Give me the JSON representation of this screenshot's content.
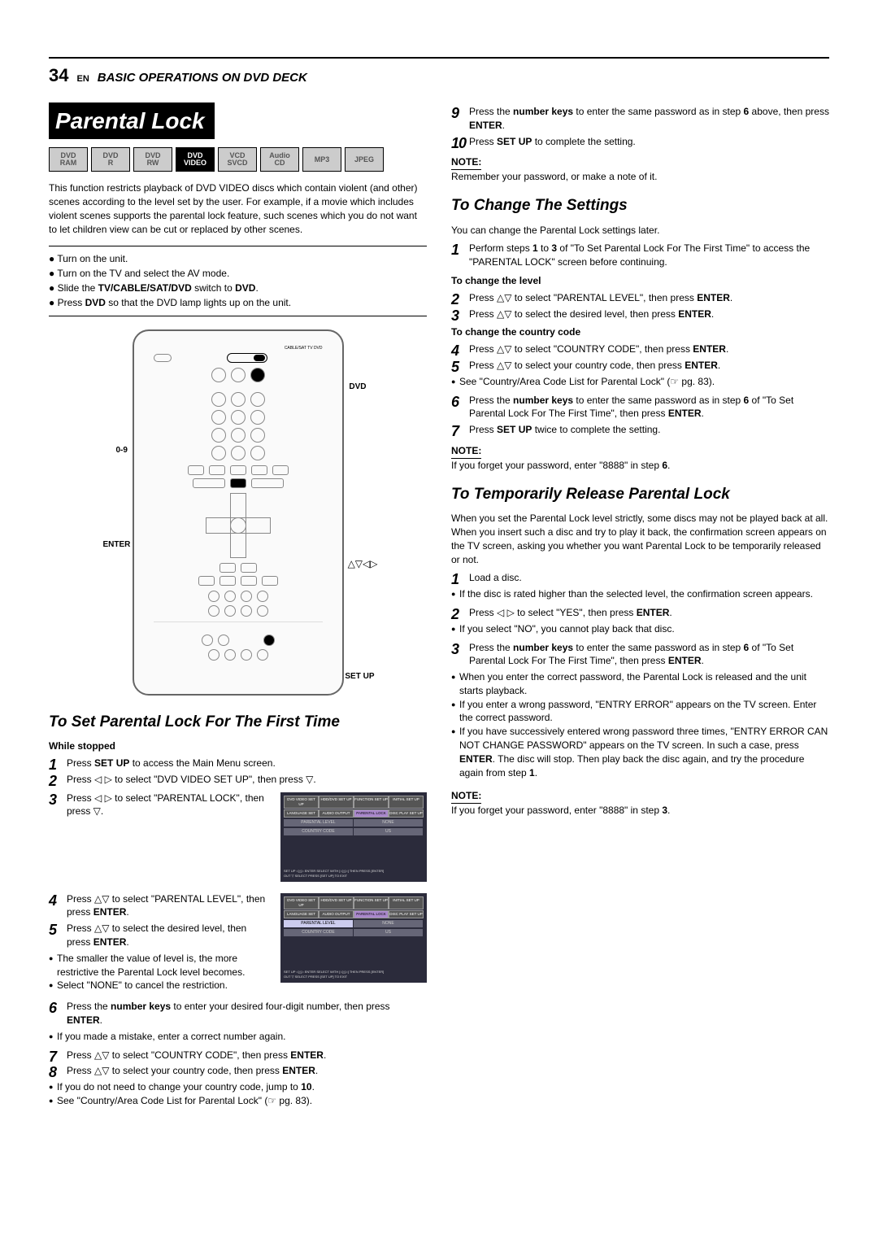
{
  "page": {
    "number": "34",
    "lang": "EN",
    "section": "BASIC OPERATIONS ON DVD DECK"
  },
  "title": "Parental Lock",
  "badges": [
    {
      "l1": "DVD",
      "l2": "RAM",
      "cls": "light"
    },
    {
      "l1": "DVD",
      "l2": "R",
      "cls": "light"
    },
    {
      "l1": "DVD",
      "l2": "RW",
      "cls": "light"
    },
    {
      "l1": "DVD",
      "l2": "VIDEO",
      "cls": "dark"
    },
    {
      "l1": "VCD",
      "l2": "SVCD",
      "cls": "light"
    },
    {
      "l1": "Audio",
      "l2": "CD",
      "cls": "light"
    },
    {
      "l1": "MP3",
      "l2": "",
      "cls": "light"
    },
    {
      "l1": "JPEG",
      "l2": "",
      "cls": "light"
    }
  ],
  "intro": "This function restricts playback of DVD VIDEO discs which contain violent (and other) scenes according to the level set by the user. For example, if a movie which includes violent scenes supports the parental lock feature, such scenes which you do not want to let children view can be cut or replaced by other scenes.",
  "prep": [
    "Turn on the unit.",
    "Turn on the TV and select the AV mode.",
    "Slide the <b>TV/CABLE/SAT/DVD</b> switch to <b>DVD</b>.",
    "Press <b>DVD</b> so that the DVD lamp lights up on the unit."
  ],
  "remote_labels": {
    "dvd": "DVD",
    "digits": "0-9",
    "enter": "ENTER",
    "setup": "SET UP",
    "arrows": "△▽◁▷",
    "switch": "CABLE/SAT  TV    DVD"
  },
  "sec1": {
    "heading": "To Set Parental Lock For The First Time",
    "while": "While stopped",
    "s1": "Press <b>SET UP</b> to access the Main Menu screen.",
    "s2": "Press ◁ ▷ to select \"DVD VIDEO SET UP\", then press ▽.",
    "s3": "Press ◁ ▷ to select \"PARENTAL LOCK\", then press ▽.",
    "s4": "Press △▽ to select \"PARENTAL LEVEL\", then press <b>ENTER</b>.",
    "s5": "Press △▽ to select the desired level, then press <b>ENTER</b>.",
    "s5b": [
      "The smaller the value of level is, the more restrictive the Parental Lock level becomes.",
      "Select \"NONE\" to cancel the restriction."
    ],
    "s6": "Press the <b>number keys</b> to enter your desired four-digit number, then press <b>ENTER</b>.",
    "s6b": [
      "If you made a mistake, enter a correct number again."
    ],
    "s7": "Press △▽ to select \"COUNTRY CODE\", then press <b>ENTER</b>.",
    "s8": "Press △▽ to select your country code, then press <b>ENTER</b>.",
    "s8b": [
      "If you do not need to change your country code, jump to <b>10</b>.",
      "See \"Country/Area Code List for Parental Lock\" (☞ pg. 83)."
    ]
  },
  "osd": {
    "tabs1": [
      "DVD VIDEO SET UP",
      "HDD/DVD SET UP",
      "FUNCTION SET UP",
      "INITIAL SET UP"
    ],
    "tabs2": [
      "LANGUAGE SET",
      "AUDIO OUTPUT",
      "PARENTAL LOCK",
      "DISC PLAY SET UP"
    ],
    "rows": [
      [
        "PARENTAL LEVEL",
        "NONE"
      ],
      [
        "COUNTRY CODE",
        "US"
      ]
    ],
    "footer": "SET UP ◁△▷ ENTER   SELECT WITH [◁△▷] THEN PRESS [ENTER]\nOUT ▽  SELECT   PRESS [SET UP] TO EXIT"
  },
  "right": {
    "s9": "Press the <b>number keys</b> to enter the same password as in step <b>6</b> above, then press <b>ENTER</b>.",
    "s10": "Press <b>SET UP</b> to complete the setting.",
    "note1": "Remember your password, or make a note of it."
  },
  "sec2": {
    "heading": "To Change The Settings",
    "intro": "You can change the Parental Lock settings later.",
    "s1": "Perform steps <b>1</b> to <b>3</b> of \"To Set Parental Lock For The First Time\" to access the \"PARENTAL LOCK\" screen before continuing.",
    "h_level": "To change the level",
    "s2": "Press △▽ to select \"PARENTAL LEVEL\", then press <b>ENTER</b>.",
    "s3": "Press △▽ to select the desired level, then press <b>ENTER</b>.",
    "h_cc": "To change the country code",
    "s4": "Press △▽ to select \"COUNTRY CODE\", then press <b>ENTER</b>.",
    "s5": "Press △▽ to select your country code, then press <b>ENTER</b>.",
    "s5b": [
      "See \"Country/Area Code List for Parental Lock\" (☞ pg. 83)."
    ],
    "s6": "Press the <b>number keys</b> to enter the same password as in step <b>6</b> of \"To Set Parental Lock For The First Time\", then press <b>ENTER</b>.",
    "s7": "Press <b>SET UP</b> twice to complete the setting.",
    "note": "If you forget your password, enter \"8888\" in step <b>6</b>."
  },
  "sec3": {
    "heading": "To Temporarily Release Parental Lock",
    "intro": "When you set the Parental Lock level strictly, some discs may not be played back at all. When you insert such a disc and try to play it back, the confirmation screen appears on the TV screen, asking you whether you want Parental Lock to be temporarily released or not.",
    "s1": "Load a disc.",
    "s1b": [
      "If the disc is rated higher than the selected level, the confirmation screen appears."
    ],
    "s2": "Press ◁ ▷ to select \"YES\", then press <b>ENTER</b>.",
    "s2b": [
      "If you select \"NO\", you cannot play back that disc."
    ],
    "s3": "Press the <b>number keys</b> to enter the same password as in step <b>6</b> of \"To Set Parental Lock For The First Time\", then press <b>ENTER</b>.",
    "s3b": [
      "When you enter the correct password, the Parental Lock is released and the unit starts playback.",
      "If you enter a wrong password, \"ENTRY ERROR\" appears on the TV screen. Enter the correct password.",
      "If you have successively entered wrong password three times, \"ENTRY ERROR CAN NOT CHANGE PASSWORD\" appears on the TV screen. In such a case, press <b>ENTER</b>. The disc will stop. Then play back the disc again, and try the procedure again from step <b>1</b>."
    ],
    "note": "If you forget your password, enter \"8888\" in step <b>3</b>."
  },
  "labels": {
    "note": "NOTE:"
  }
}
